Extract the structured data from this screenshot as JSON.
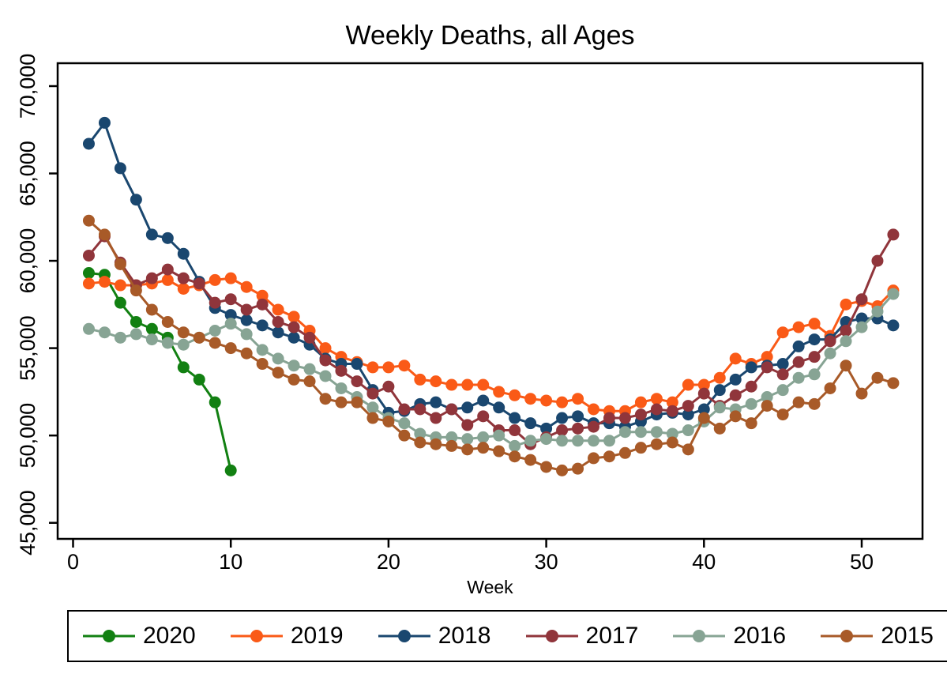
{
  "chart_data": {
    "type": "line",
    "title": "Weekly Deaths, all Ages",
    "xlabel": "Week",
    "ylabel": "",
    "x_ticks": [
      0,
      10,
      20,
      30,
      40,
      50
    ],
    "y_ticks": [
      "45,000",
      "50,000",
      "55,000",
      "60,000",
      "65,000",
      "70,000"
    ],
    "y_tick_values": [
      45000,
      50000,
      55000,
      60000,
      65000,
      70000
    ],
    "xlim": [
      -1,
      54
    ],
    "ylim": [
      44100,
      71300
    ],
    "grid": false,
    "legend_position": "bottom",
    "marker": "circle",
    "series": [
      {
        "name": "2020",
        "color": "#128012",
        "values": [
          59300,
          59200,
          57600,
          56500,
          56100,
          55600,
          53900,
          53200,
          51900,
          48000
        ]
      },
      {
        "name": "2019",
        "color": "#fa5a17",
        "values": [
          58700,
          58800,
          58600,
          58600,
          58700,
          58900,
          58400,
          58600,
          58900,
          59000,
          58500,
          58000,
          57200,
          56800,
          56000,
          55000,
          54500,
          54200,
          53900,
          53900,
          54000,
          53200,
          53100,
          52900,
          52900,
          52900,
          52500,
          52300,
          52100,
          52000,
          51900,
          52100,
          51500,
          51400,
          51400,
          51900,
          52100,
          51900,
          52900,
          52900,
          53300,
          54400,
          54100,
          54500,
          55900,
          56200,
          56400,
          55700,
          57500,
          57700,
          57400,
          58300
        ]
      },
      {
        "name": "2018",
        "color": "#1a476f",
        "values": [
          66700,
          67900,
          65300,
          63500,
          61500,
          61300,
          60400,
          58800,
          57300,
          56900,
          56600,
          56300,
          55900,
          55600,
          55200,
          54400,
          54100,
          54100,
          52600,
          51300,
          51400,
          51800,
          51900,
          51500,
          51600,
          52000,
          51600,
          51000,
          50700,
          50400,
          51000,
          51100,
          50700,
          50700,
          50500,
          50800,
          51200,
          51300,
          51200,
          51500,
          52600,
          53200,
          53900,
          54000,
          54100,
          55100,
          55500,
          55500,
          56500,
          56700,
          56700,
          56300
        ]
      },
      {
        "name": "2017",
        "color": "#90353b",
        "values": [
          60300,
          61400,
          59900,
          58600,
          59000,
          59500,
          59000,
          58700,
          57600,
          57800,
          57200,
          57500,
          56500,
          56200,
          55600,
          54300,
          53700,
          53100,
          52400,
          52800,
          51500,
          51500,
          51000,
          51500,
          50600,
          51100,
          50300,
          50300,
          49500,
          49900,
          50300,
          50400,
          50500,
          51000,
          51000,
          51200,
          51500,
          51400,
          51700,
          52400,
          51700,
          52300,
          52800,
          53900,
          53500,
          54200,
          54500,
          55400,
          56000,
          57800,
          60000,
          61500
        ]
      },
      {
        "name": "2016",
        "color": "#87a494",
        "values": [
          56100,
          55900,
          55600,
          55800,
          55500,
          55300,
          55200,
          55600,
          56000,
          56400,
          55800,
          54900,
          54400,
          54000,
          53800,
          53400,
          52700,
          52200,
          51600,
          51000,
          50700,
          50100,
          49900,
          49900,
          49800,
          49900,
          50000,
          49400,
          49700,
          49800,
          49700,
          49700,
          49700,
          49700,
          50200,
          50200,
          50200,
          50100,
          50300,
          50800,
          51600,
          51500,
          51800,
          52200,
          52600,
          53300,
          53500,
          54700,
          55400,
          56200,
          57100,
          58100
        ]
      },
      {
        "name": "2015",
        "color": "#a85a28",
        "values": [
          62300,
          61500,
          59800,
          58300,
          57200,
          56500,
          55900,
          55600,
          55300,
          55000,
          54700,
          54100,
          53600,
          53200,
          53100,
          52100,
          51900,
          51900,
          51000,
          50800,
          50000,
          49600,
          49500,
          49400,
          49200,
          49300,
          49100,
          48800,
          48600,
          48200,
          48000,
          48100,
          48700,
          48800,
          49000,
          49300,
          49500,
          49600,
          49200,
          51000,
          50400,
          51100,
          50700,
          51700,
          51200,
          51900,
          51800,
          52700,
          54000,
          52400,
          53300,
          53000
        ]
      }
    ]
  }
}
